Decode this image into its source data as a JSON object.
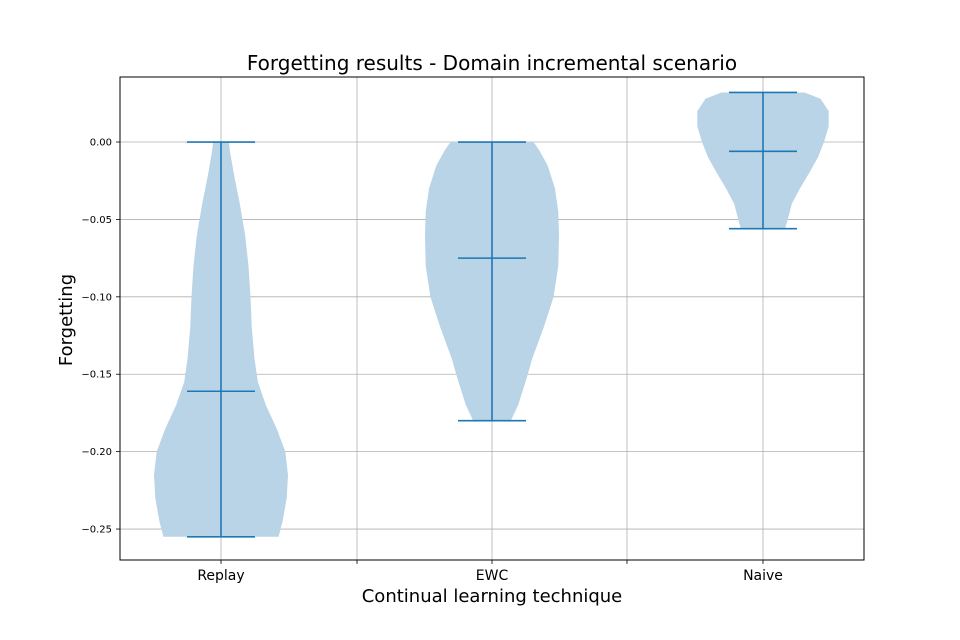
{
  "chart_data": {
    "type": "violin",
    "title": "Forgetting results - Domain incremental scenario",
    "xlabel": "Continual learning technique",
    "ylabel": "Forgetting",
    "categories": [
      "Replay",
      "EWC",
      "Naive"
    ],
    "ylim": [
      -0.27,
      0.042
    ],
    "yticks": [
      0.0,
      -0.05,
      -0.1,
      -0.15,
      -0.2,
      -0.25
    ],
    "ytick_labels": [
      "0.00",
      "−0.05",
      "−0.10",
      "−0.15",
      "−0.20",
      "−0.25"
    ],
    "grid": true,
    "violins": [
      {
        "category": "Replay",
        "min": -0.255,
        "max": 0.0,
        "mean": -0.161,
        "density": [
          [
            -0.255,
            0.86
          ],
          [
            -0.245,
            0.92
          ],
          [
            -0.23,
            0.98
          ],
          [
            -0.215,
            1.0
          ],
          [
            -0.2,
            0.96
          ],
          [
            -0.185,
            0.83
          ],
          [
            -0.17,
            0.67
          ],
          [
            -0.155,
            0.55
          ],
          [
            -0.14,
            0.5
          ],
          [
            -0.12,
            0.46
          ],
          [
            -0.1,
            0.44
          ],
          [
            -0.08,
            0.41
          ],
          [
            -0.06,
            0.36
          ],
          [
            -0.04,
            0.28
          ],
          [
            -0.02,
            0.19
          ],
          [
            -0.005,
            0.13
          ],
          [
            0.0,
            0.12
          ]
        ]
      },
      {
        "category": "EWC",
        "min": -0.18,
        "max": 0.0,
        "mean": -0.075,
        "density": [
          [
            -0.18,
            0.28
          ],
          [
            -0.17,
            0.39
          ],
          [
            -0.155,
            0.5
          ],
          [
            -0.14,
            0.6
          ],
          [
            -0.12,
            0.77
          ],
          [
            -0.1,
            0.92
          ],
          [
            -0.08,
            0.99
          ],
          [
            -0.06,
            1.0
          ],
          [
            -0.045,
            0.99
          ],
          [
            -0.03,
            0.94
          ],
          [
            -0.015,
            0.83
          ],
          [
            -0.005,
            0.7
          ],
          [
            0.0,
            0.62
          ]
        ]
      },
      {
        "category": "Naive",
        "min": -0.056,
        "max": 0.032,
        "mean": -0.006,
        "density": [
          [
            -0.056,
            0.33
          ],
          [
            -0.05,
            0.37
          ],
          [
            -0.04,
            0.43
          ],
          [
            -0.03,
            0.55
          ],
          [
            -0.02,
            0.69
          ],
          [
            -0.01,
            0.82
          ],
          [
            0.0,
            0.91
          ],
          [
            0.01,
            0.98
          ],
          [
            0.02,
            0.98
          ],
          [
            0.028,
            0.86
          ],
          [
            0.032,
            0.62
          ]
        ]
      }
    ],
    "colors": {
      "fill": "#b9d4e7",
      "line": "#1f77b4",
      "grid": "#b0b0b0"
    }
  }
}
